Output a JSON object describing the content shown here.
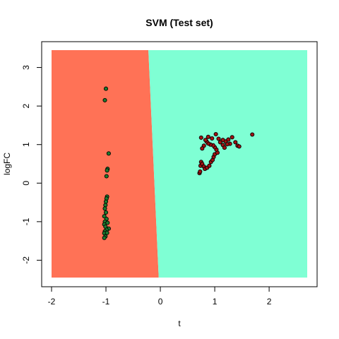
{
  "chart_data": {
    "type": "scatter",
    "title": "SVM (Test set)",
    "xlabel": "t",
    "ylabel": "logFC",
    "xlim": [
      -2.0,
      2.7
    ],
    "ylim": [
      -2.45,
      3.45
    ],
    "x_ticks": [
      -2,
      -1,
      0,
      1,
      2
    ],
    "y_ticks": [
      -2,
      -1,
      0,
      1,
      2,
      3
    ],
    "grid": false,
    "legend": "none",
    "regions": [
      {
        "color": "#FF7256",
        "side": "left of boundary"
      },
      {
        "color": "#7FFFD4",
        "side": "right of boundary"
      }
    ],
    "decision_boundary": [
      [
        -0.22,
        3.45
      ],
      [
        -0.03,
        -2.45
      ]
    ],
    "series": [
      {
        "color": "#1E7B2E",
        "points": [
          [
            -1.0,
            2.45
          ],
          [
            -1.02,
            2.15
          ],
          [
            -0.95,
            0.77
          ],
          [
            -0.97,
            0.37
          ],
          [
            -0.98,
            0.33
          ],
          [
            -0.99,
            0.18
          ],
          [
            -0.98,
            -0.35
          ],
          [
            -0.99,
            -0.4
          ],
          [
            -1.0,
            -0.48
          ],
          [
            -1.01,
            -0.57
          ],
          [
            -1.02,
            -0.66
          ],
          [
            -1.0,
            -0.76
          ],
          [
            -1.03,
            -0.86
          ],
          [
            -0.99,
            -0.93
          ],
          [
            -1.02,
            -1.0
          ],
          [
            -1.03,
            -1.07
          ],
          [
            -0.97,
            -1.03
          ],
          [
            -1.01,
            -1.13
          ],
          [
            -0.95,
            -1.18
          ],
          [
            -0.99,
            -1.21
          ],
          [
            -1.02,
            -1.25
          ],
          [
            -1.03,
            -1.3
          ],
          [
            -0.98,
            -1.29
          ],
          [
            -1.01,
            -1.38
          ],
          [
            -1.03,
            -1.42
          ]
        ]
      },
      {
        "color": "#A01212",
        "points": [
          [
            0.72,
            0.26
          ],
          [
            0.73,
            0.3
          ],
          [
            0.74,
            0.45
          ],
          [
            0.75,
            0.55
          ],
          [
            0.77,
            0.5
          ],
          [
            0.8,
            0.43
          ],
          [
            0.82,
            0.37
          ],
          [
            0.86,
            0.4
          ],
          [
            0.9,
            0.45
          ],
          [
            0.93,
            0.55
          ],
          [
            0.96,
            0.6
          ],
          [
            0.98,
            0.68
          ],
          [
            1.0,
            0.75
          ],
          [
            1.05,
            0.79
          ],
          [
            1.03,
            0.87
          ],
          [
            1.0,
            0.93
          ],
          [
            0.97,
            0.98
          ],
          [
            0.92,
            1.0
          ],
          [
            0.88,
            1.03
          ],
          [
            0.85,
            1.08
          ],
          [
            0.83,
            1.12
          ],
          [
            0.8,
            0.97
          ],
          [
            0.77,
            0.9
          ],
          [
            0.75,
            1.18
          ],
          [
            0.88,
            1.2
          ],
          [
            0.95,
            1.16
          ],
          [
            1.02,
            1.27
          ],
          [
            1.07,
            1.15
          ],
          [
            1.1,
            1.06
          ],
          [
            1.15,
            0.99
          ],
          [
            1.18,
            0.92
          ],
          [
            1.2,
            1.08
          ],
          [
            1.25,
            1.13
          ],
          [
            1.28,
            1.02
          ],
          [
            1.32,
            1.19
          ],
          [
            1.38,
            1.06
          ],
          [
            1.42,
            0.97
          ],
          [
            1.45,
            0.95
          ],
          [
            1.23,
            1.01
          ],
          [
            1.15,
            1.12
          ],
          [
            1.69,
            1.26
          ]
        ]
      }
    ]
  }
}
